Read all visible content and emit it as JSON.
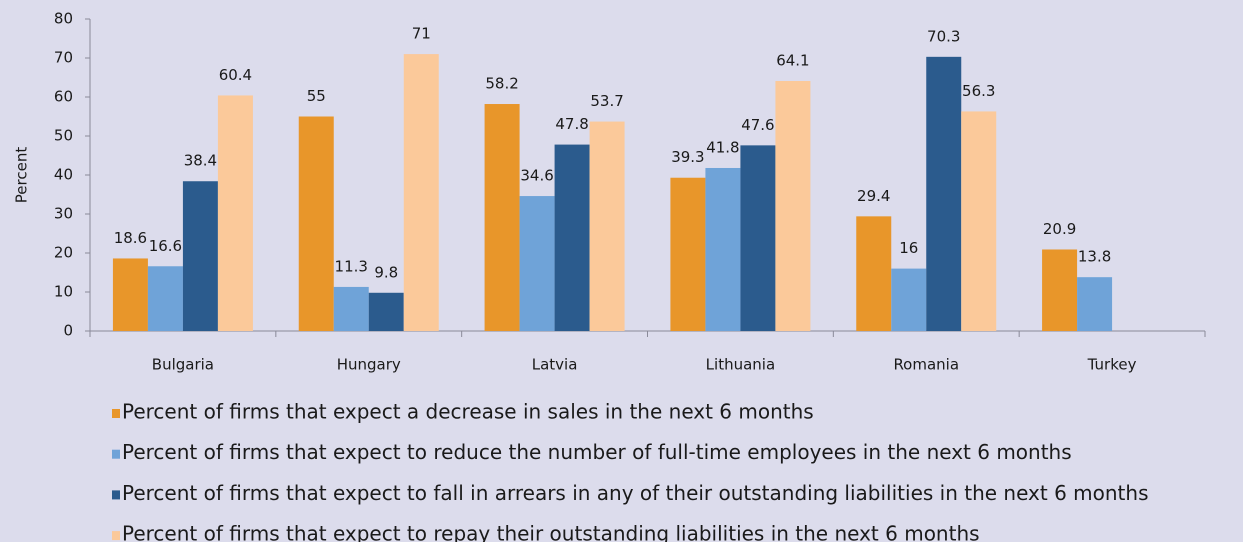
{
  "chart_data": {
    "type": "bar",
    "y_label": "Percent",
    "categories": [
      "Bulgaria",
      "Hungary",
      "Latvia",
      "Lithuania",
      "Romania",
      "Turkey"
    ],
    "series": [
      {
        "name": "Percent of firms that expect a decrease in sales in the next 6 months",
        "color": "#e8962a",
        "values": [
          18.6,
          55,
          58.2,
          39.3,
          29.4,
          20.9
        ]
      },
      {
        "name": "Percent of firms that expect to reduce the number of full-time employees in the next 6 months",
        "color": "#6fa3d8",
        "values": [
          16.6,
          11.3,
          34.6,
          41.8,
          16,
          13.8
        ]
      },
      {
        "name": "Percent of firms that expect to fall in arrears in any of their outstanding liabilities in the next 6 months",
        "color": "#2b5b8d",
        "values": [
          38.4,
          9.8,
          47.8,
          47.6,
          70.3,
          null
        ]
      },
      {
        "name": "Percent of firms that expect to repay their outstanding liabilities in the next 6 months",
        "color": "#fbc99a",
        "values": [
          60.4,
          71,
          53.7,
          64.1,
          56.3,
          null
        ]
      }
    ],
    "ylim": [
      0,
      80
    ],
    "yticks": [
      0,
      10,
      20,
      30,
      40,
      50,
      60,
      70,
      80
    ],
    "grid": false
  }
}
